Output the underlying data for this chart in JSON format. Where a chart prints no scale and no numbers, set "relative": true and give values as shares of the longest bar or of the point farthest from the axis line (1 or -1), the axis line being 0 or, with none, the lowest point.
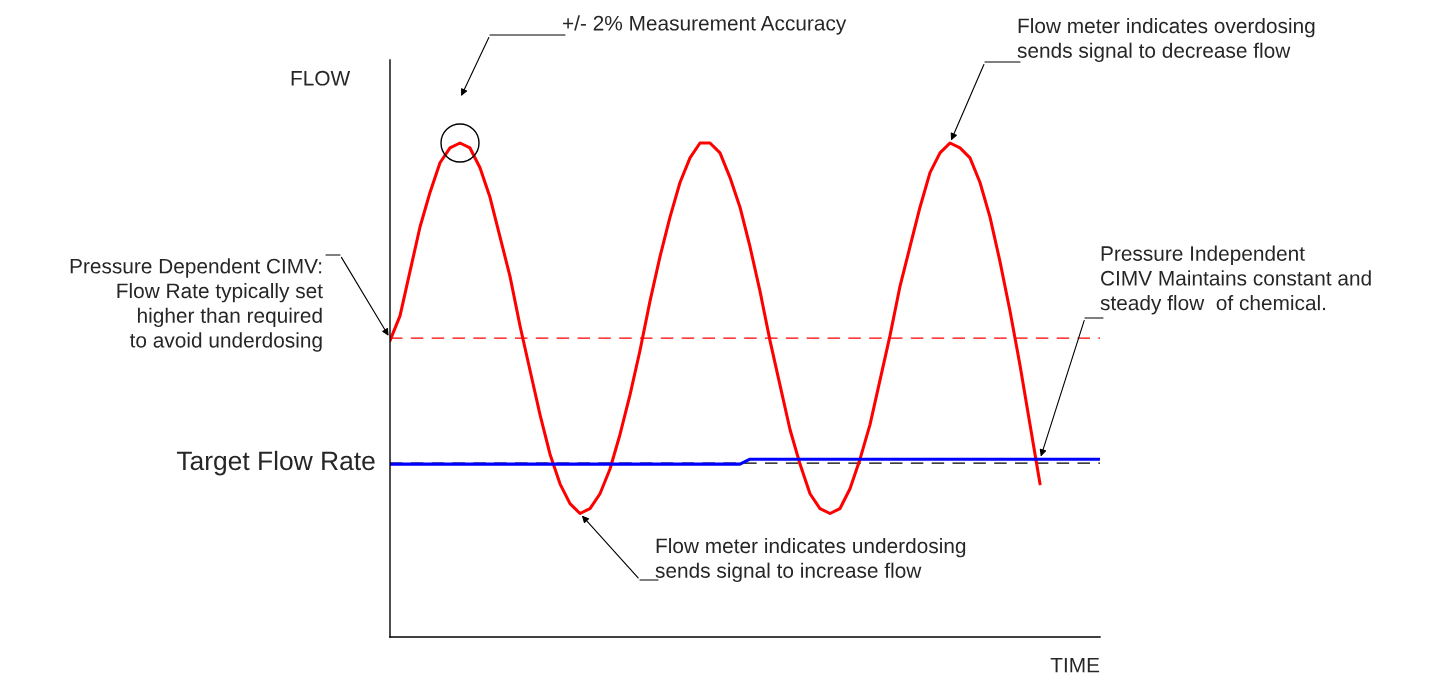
{
  "chart_data": {
    "type": "line",
    "relative": true,
    "xlabel": "TIME",
    "ylabel": "FLOW",
    "categories": [
      null,
      null,
      null,
      null,
      null,
      null,
      null,
      null,
      null,
      null,
      null,
      null,
      null,
      null,
      null,
      null,
      null,
      null,
      null,
      null,
      null,
      null,
      null,
      null,
      null,
      null,
      null,
      null,
      null,
      null,
      null,
      null,
      null,
      null,
      null,
      null,
      null,
      null,
      null,
      null,
      null,
      null,
      null,
      null,
      null,
      null,
      null,
      null,
      null,
      null,
      null,
      null,
      null,
      null,
      null,
      null,
      null,
      null,
      null,
      null,
      null,
      null,
      null,
      null,
      null,
      null,
      null,
      null,
      null,
      null,
      null,
      null
    ],
    "series": [
      {
        "color": "#ff0000",
        "values": [
          0.6,
          0.65,
          0.74,
          0.83,
          0.9,
          0.96,
          0.99,
          1.0,
          0.99,
          0.95,
          0.89,
          0.81,
          0.73,
          0.63,
          0.54,
          0.45,
          0.37,
          0.31,
          0.27,
          0.25,
          0.26,
          0.29,
          0.34,
          0.41,
          0.49,
          0.58,
          0.68,
          0.77,
          0.85,
          0.92,
          0.97,
          1.0,
          1.0,
          0.98,
          0.93,
          0.87,
          0.79,
          0.7,
          0.6,
          0.51,
          0.42,
          0.35,
          0.29,
          0.26,
          0.25,
          0.26,
          0.3,
          0.36,
          0.43,
          0.52,
          0.61,
          0.71,
          0.79,
          0.87,
          0.94,
          0.98,
          1.0,
          0.99,
          0.97,
          0.92,
          0.85,
          0.76,
          0.66,
          0.55,
          0.43,
          0.31,
          null,
          null,
          null,
          null,
          null,
          null
        ]
      },
      {
        "color": "#0000ff",
        "values": [
          0.35,
          0.35,
          0.35,
          0.35,
          0.35,
          0.35,
          0.35,
          0.35,
          0.35,
          0.35,
          0.35,
          0.35,
          0.35,
          0.35,
          0.35,
          0.35,
          0.35,
          0.35,
          0.35,
          0.35,
          0.35,
          0.35,
          0.35,
          0.35,
          0.35,
          0.35,
          0.35,
          0.35,
          0.35,
          0.35,
          0.35,
          0.35,
          0.35,
          0.35,
          0.35,
          0.35,
          0.36,
          0.36,
          0.36,
          0.36,
          0.36,
          0.36,
          0.36,
          0.36,
          0.36,
          0.36,
          0.36,
          0.36,
          0.36,
          0.36,
          0.36,
          0.36,
          0.36,
          0.36,
          0.36,
          0.36,
          0.36,
          0.36,
          0.36,
          0.36,
          0.36,
          0.36,
          0.36,
          0.36,
          0.36,
          0.36,
          0.36,
          0.36,
          0.36,
          0.36,
          0.36,
          0.36
        ]
      }
    ],
    "ref_lines": [
      {
        "axis": "y",
        "value": 0.605,
        "color": "#ff0000",
        "line_style": "dashed"
      },
      {
        "axis": "y",
        "value": 0.352,
        "label": "Target Flow Rate",
        "color": "#000000",
        "line_style": "dashed"
      }
    ],
    "annotations": [
      "+/- 2% Measurement Accuracy",
      "Flow meter indicates overdosing\nsends signal to decrease flow",
      "Pressure Dependent CIMV:\nFlow Rate typically set\nhigher than required\nto avoid underdosing",
      "Pressure Independent\nCIMV Maintains constant and\nsteady flow  of chemical.",
      "Flow meter indicates underdosing\nsends signal to increase flow"
    ],
    "grid": false,
    "legend": false
  }
}
